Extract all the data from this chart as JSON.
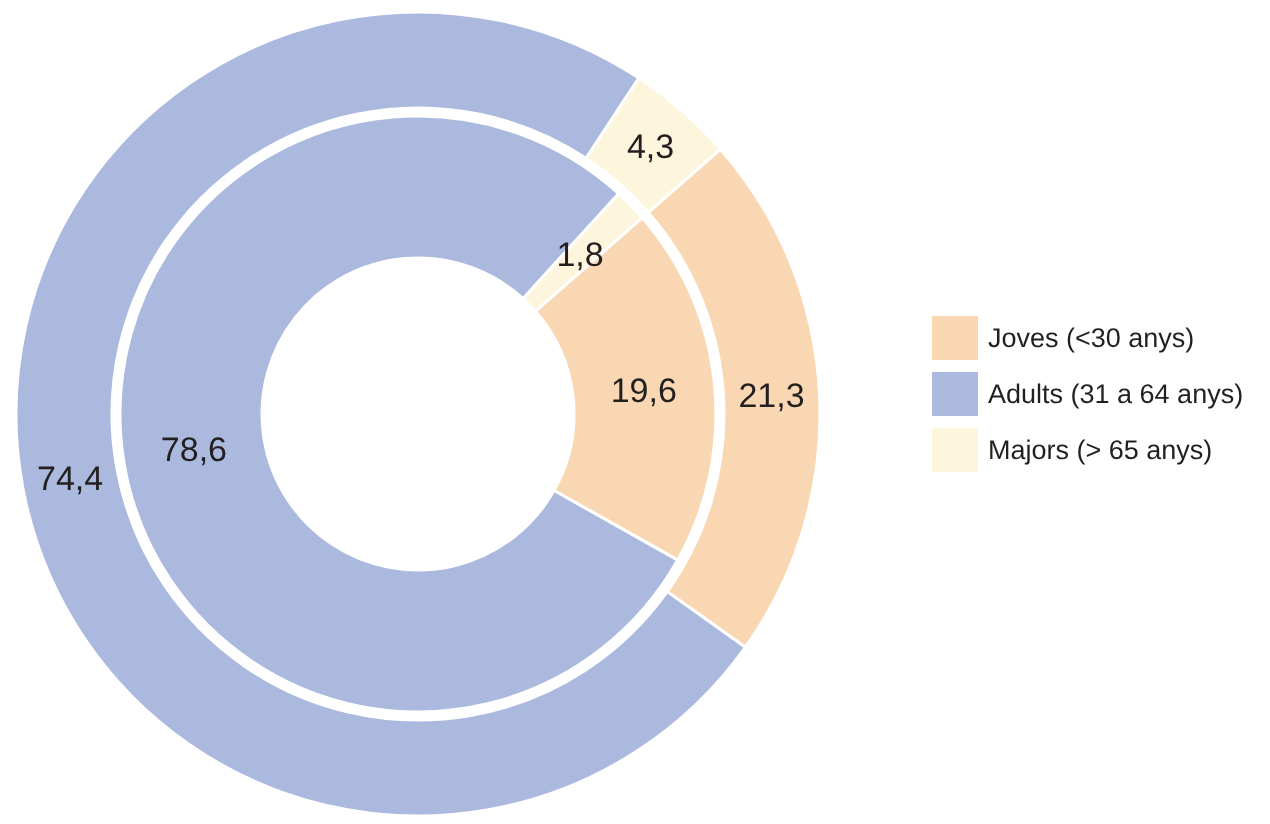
{
  "chart_data": {
    "type": "donut",
    "categories": [
      "Joves (<30 anys)",
      "Adults (31 a 64 anys)",
      "Majors (> 65 anys)"
    ],
    "colors": [
      "#f9d7b3",
      "#abb9de",
      "#fdf5dc"
    ],
    "series": [
      {
        "values": [
          21.3,
          74.4,
          4.3
        ],
        "value_labels": [
          "21,3",
          "74,4",
          "4,3"
        ]
      },
      {
        "values": [
          19.6,
          78.6,
          1.8
        ],
        "value_labels": [
          "19,6",
          "78,6",
          "1,8"
        ]
      }
    ],
    "legend": "right"
  }
}
